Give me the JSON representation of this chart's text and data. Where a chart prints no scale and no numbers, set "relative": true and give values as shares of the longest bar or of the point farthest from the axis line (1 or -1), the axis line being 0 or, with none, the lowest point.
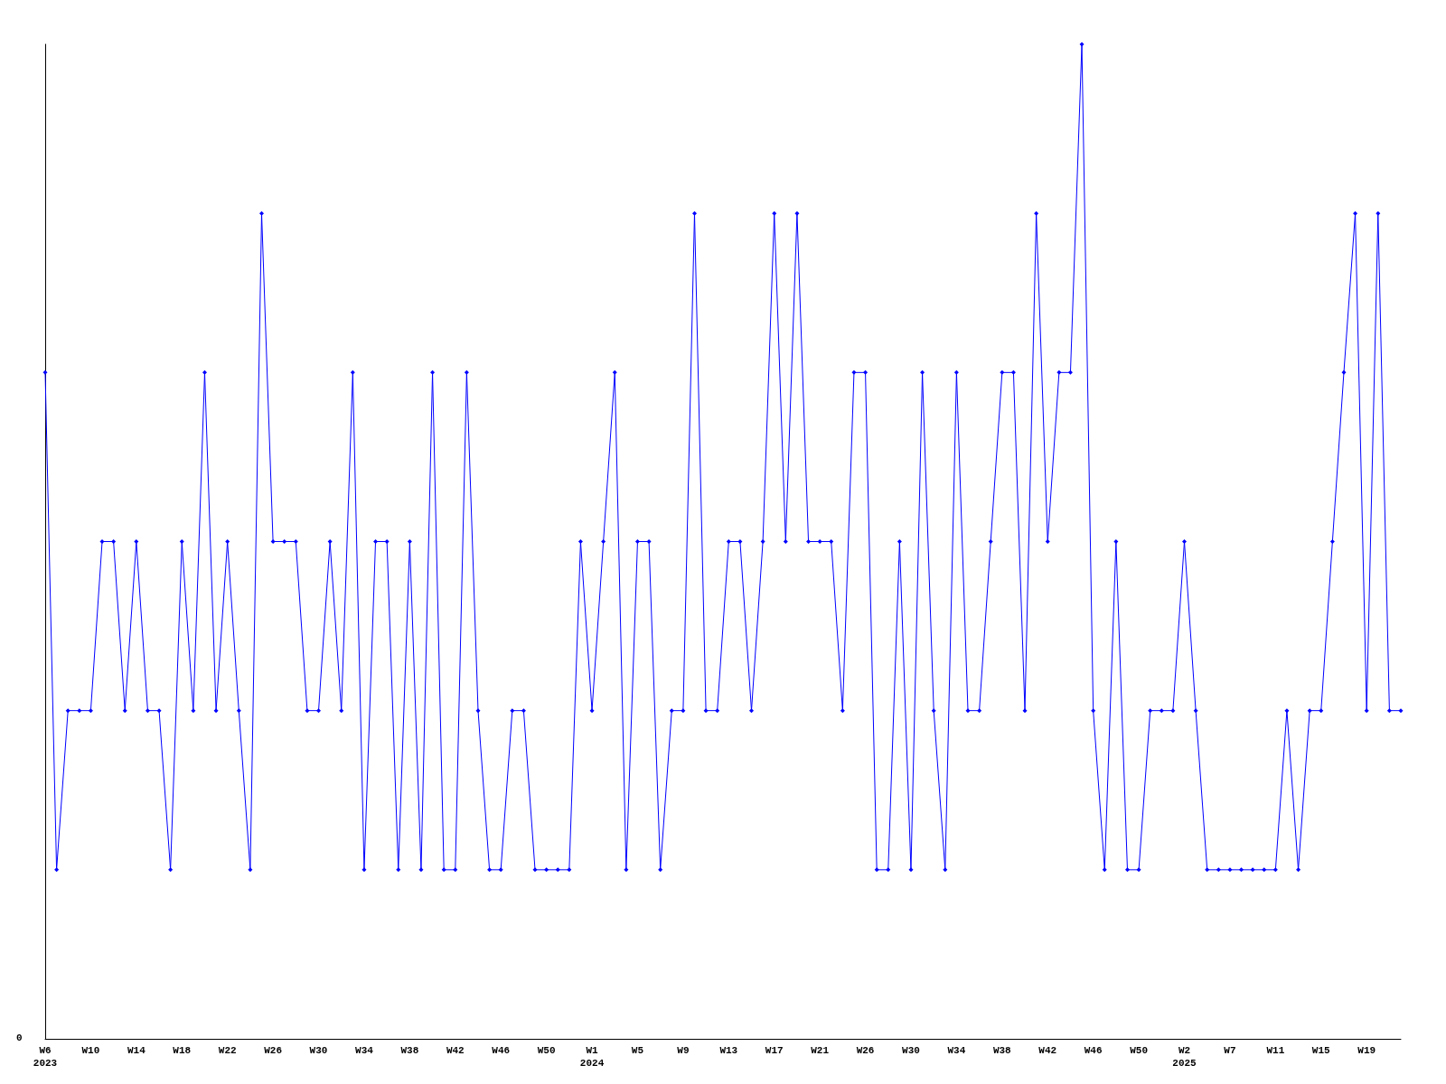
{
  "chart_data": {
    "type": "line",
    "relative": true,
    "marker": "diamond",
    "line_style": "solid",
    "grid": false,
    "annotations": [
      "0"
    ],
    "categories": [
      "W6\n2023",
      null,
      null,
      null,
      "W10",
      null,
      null,
      null,
      "W14",
      null,
      null,
      null,
      "W18",
      null,
      null,
      null,
      "W22",
      null,
      null,
      null,
      "W26",
      null,
      null,
      null,
      "W30",
      null,
      null,
      null,
      "W34",
      null,
      null,
      null,
      "W38",
      null,
      null,
      null,
      "W42",
      null,
      null,
      null,
      "W46",
      null,
      null,
      null,
      "W50",
      null,
      null,
      null,
      "W1\n2024",
      null,
      null,
      null,
      "W5",
      null,
      null,
      null,
      "W9",
      null,
      null,
      null,
      "W13",
      null,
      null,
      null,
      "W17",
      null,
      null,
      null,
      "W21",
      null,
      null,
      null,
      "W26",
      null,
      null,
      null,
      "W30",
      null,
      null,
      null,
      "W34",
      null,
      null,
      null,
      "W38",
      null,
      null,
      null,
      "W42",
      null,
      null,
      null,
      "W46",
      null,
      null,
      null,
      "W50",
      null,
      null,
      null,
      "W2\n2025",
      null,
      null,
      null,
      "W7",
      null,
      null,
      null,
      "W11",
      null,
      null,
      null,
      "W15",
      null,
      null,
      null,
      "W19",
      null,
      null,
      null
    ],
    "series": [
      {
        "color": "#0000ff",
        "values": [
          0.67,
          0.17,
          0.33,
          0.33,
          0.33,
          0.5,
          0.5,
          0.33,
          0.5,
          0.33,
          0.33,
          0.17,
          0.5,
          0.33,
          0.67,
          0.33,
          0.5,
          0.33,
          0.17,
          0.83,
          0.5,
          0.5,
          0.5,
          0.33,
          0.33,
          0.5,
          0.33,
          0.67,
          0.17,
          0.5,
          0.5,
          0.17,
          0.5,
          0.17,
          0.67,
          0.17,
          0.17,
          0.67,
          0.33,
          0.17,
          0.17,
          0.33,
          0.33,
          0.17,
          0.17,
          0.17,
          0.17,
          0.5,
          0.33,
          0.5,
          0.67,
          0.17,
          0.5,
          0.5,
          0.17,
          0.33,
          0.33,
          0.83,
          0.33,
          0.33,
          0.5,
          0.5,
          0.33,
          0.5,
          0.83,
          0.5,
          0.83,
          0.5,
          0.5,
          0.5,
          0.33,
          0.67,
          0.67,
          0.17,
          0.17,
          0.5,
          0.17,
          0.67,
          0.33,
          0.17,
          0.67,
          0.33,
          0.33,
          0.5,
          0.67,
          0.67,
          0.33,
          0.83,
          0.5,
          0.67,
          0.67,
          1,
          0.33,
          0.17,
          0.5,
          0.17,
          0.17,
          0.33,
          0.33,
          0.33,
          0.5,
          0.33,
          0.17,
          0.17,
          0.17,
          0.17,
          0.17,
          0.17,
          0.17,
          0.33,
          0.17,
          0.33,
          0.33,
          0.5,
          0.67,
          0.83,
          0.33,
          0.83,
          0.33,
          0.33
        ]
      }
    ]
  }
}
